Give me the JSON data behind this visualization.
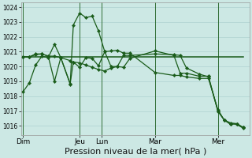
{
  "background_color": "#cce8e4",
  "plot_background": "#cce8e4",
  "line_color": "#1a5c1a",
  "grid_color": "#a8cccc",
  "ylim": [
    1015.4,
    1024.3
  ],
  "yticks": [
    1016,
    1017,
    1018,
    1019,
    1020,
    1021,
    1022,
    1023,
    1024
  ],
  "xlabel": "Pression niveau de la mer( hPa )",
  "xlabel_fontsize": 8,
  "day_labels": [
    "Dim",
    "Jeu",
    "Lun",
    "Mar",
    "Mer"
  ],
  "day_x": [
    0,
    9,
    12.5,
    21,
    31
  ],
  "xlim": [
    -0.3,
    36
  ],
  "lines": [
    {
      "x": [
        0,
        1,
        2,
        3,
        4,
        5,
        6,
        7.5,
        8,
        9,
        10,
        11,
        12,
        13,
        14,
        15,
        16,
        17,
        21,
        24,
        25,
        26,
        28,
        29.5,
        31,
        32,
        33,
        34,
        35
      ],
      "y": [
        1018.3,
        1018.9,
        1020.1,
        1020.7,
        1020.6,
        1021.5,
        1020.6,
        1018.8,
        1022.8,
        1023.6,
        1023.3,
        1023.4,
        1022.4,
        1021.0,
        1020.0,
        1020.0,
        1019.95,
        1020.55,
        1021.05,
        1020.75,
        1019.55,
        1019.55,
        1019.35,
        1019.35,
        1017.0,
        1016.4,
        1016.1,
        1016.15,
        1015.9
      ],
      "marker": "D",
      "markersize": 2.2,
      "linewidth": 0.9
    },
    {
      "x": [
        0,
        1,
        2,
        3,
        4,
        5,
        6,
        7.5,
        8,
        9,
        10,
        11,
        12,
        13,
        14,
        15,
        16,
        17,
        21,
        24,
        25,
        26,
        28,
        29.5,
        31,
        32,
        33,
        34,
        35
      ],
      "y": [
        1020.65,
        1020.65,
        1020.8,
        1020.85,
        1020.7,
        1020.7,
        1020.6,
        1020.4,
        1020.3,
        1020.25,
        1020.1,
        1019.95,
        1019.8,
        1019.7,
        1019.9,
        1020.0,
        1020.75,
        1020.75,
        1020.85,
        1020.8,
        1020.75,
        1019.9,
        1019.5,
        1019.3,
        1017.0,
        1016.4,
        1016.15,
        1016.1,
        1015.85
      ],
      "marker": "D",
      "markersize": 2.2,
      "linewidth": 0.9
    },
    {
      "x": [
        0,
        1,
        2,
        3,
        4,
        5,
        6,
        7.5,
        8,
        9,
        10,
        11,
        12,
        13,
        14,
        15,
        16,
        17,
        21,
        24,
        25,
        26,
        28,
        29.5,
        31,
        32,
        33,
        34,
        35
      ],
      "y": [
        1020.65,
        1020.65,
        1020.85,
        1020.85,
        1020.7,
        1019.0,
        1020.6,
        1018.85,
        1020.3,
        1019.95,
        1020.6,
        1020.55,
        1020.05,
        1021.0,
        1021.05,
        1021.1,
        1020.9,
        1020.9,
        1019.6,
        1019.4,
        1019.4,
        1019.3,
        1019.2,
        1019.2,
        1017.1,
        1016.4,
        1016.2,
        1016.15,
        1015.9
      ],
      "marker": "D",
      "markersize": 2.2,
      "linewidth": 0.9
    },
    {
      "x": [
        0,
        35
      ],
      "y": [
        1020.65,
        1020.65
      ],
      "marker": null,
      "markersize": 0,
      "linewidth": 1.1
    }
  ],
  "vlines": [
    0,
    9,
    12.5,
    21,
    31
  ]
}
